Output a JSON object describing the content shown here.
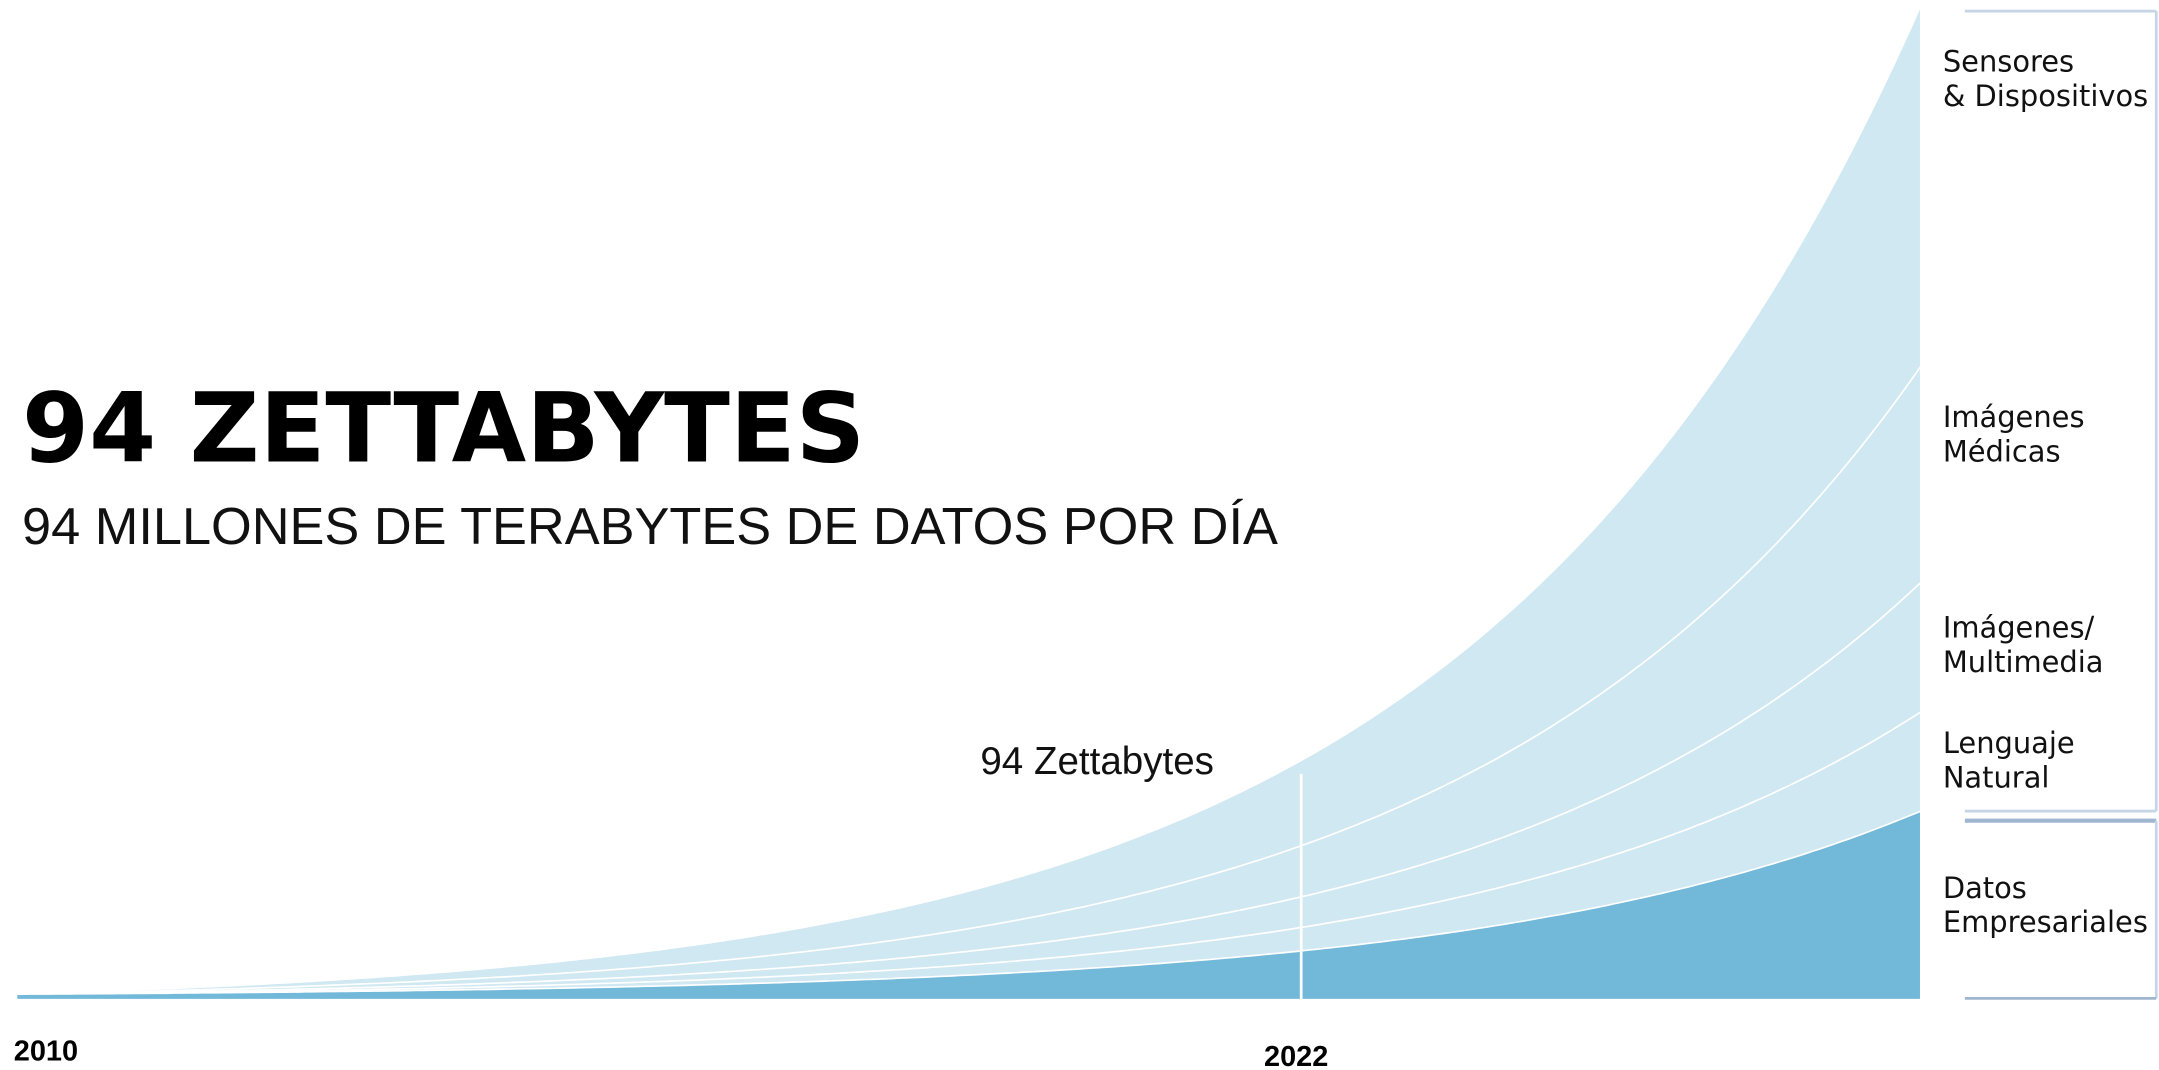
{
  "header": {
    "title": "94 ZETTABYTES",
    "subtitle": "94 MILLONES DE TERABYTES DE DATOS POR DÍA"
  },
  "annotation": "94 Zettabytes",
  "axis": {
    "start": "2010",
    "mark": "2022"
  },
  "legend": [
    [
      "Sensores",
      "& Dispositivos"
    ],
    [
      "Imágenes",
      "Médicas"
    ],
    [
      "Imágenes/",
      "Multimedia"
    ],
    [
      "Lenguaje",
      "Natural"
    ],
    [
      "Datos",
      "Empresariales"
    ]
  ]
}
